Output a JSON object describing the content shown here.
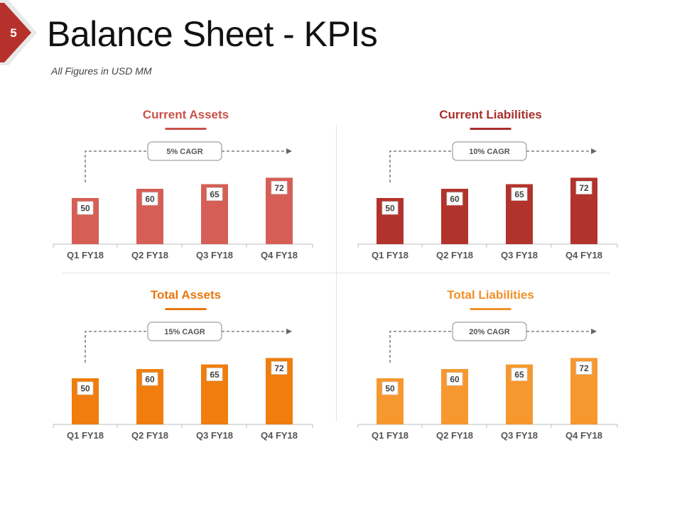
{
  "slide": {
    "number": "5",
    "title": "Balance Sheet - KPIs",
    "subtitle": "All Figures in USD MM",
    "badge_color": "#b7312c"
  },
  "chart_data": [
    {
      "type": "bar",
      "title": "Current Assets",
      "categories": [
        "Q1 FY18",
        "Q2 FY18",
        "Q3 FY18",
        "Q4 FY18"
      ],
      "values": [
        50,
        60,
        65,
        72
      ],
      "annotation": "5% CAGR",
      "color": "#d55f56",
      "title_color": "#c9524a",
      "ylim": [
        0,
        100
      ],
      "grid": false,
      "xlabel": "",
      "ylabel": ""
    },
    {
      "type": "bar",
      "title": "Current Liabilities",
      "categories": [
        "Q1 FY18",
        "Q2 FY18",
        "Q3 FY18",
        "Q4 FY18"
      ],
      "values": [
        50,
        60,
        65,
        72
      ],
      "annotation": "10% CAGR",
      "color": "#b2332c",
      "title_color": "#a8302b",
      "ylim": [
        0,
        100
      ],
      "grid": false,
      "xlabel": "",
      "ylabel": ""
    },
    {
      "type": "bar",
      "title": "Total Assets",
      "categories": [
        "Q1 FY18",
        "Q2 FY18",
        "Q3 FY18",
        "Q4 FY18"
      ],
      "values": [
        50,
        60,
        65,
        72
      ],
      "annotation": "15% CAGR",
      "color": "#f07d0d",
      "title_color": "#e8760f",
      "ylim": [
        0,
        100
      ],
      "grid": false,
      "xlabel": "",
      "ylabel": ""
    },
    {
      "type": "bar",
      "title": "Total Liabilities",
      "categories": [
        "Q1 FY18",
        "Q2 FY18",
        "Q3 FY18",
        "Q4 FY18"
      ],
      "values": [
        50,
        60,
        65,
        72
      ],
      "annotation": "20% CAGR",
      "color": "#f7982f",
      "title_color": "#f0902a",
      "ylim": [
        0,
        100
      ],
      "grid": false,
      "xlabel": "",
      "ylabel": ""
    }
  ]
}
